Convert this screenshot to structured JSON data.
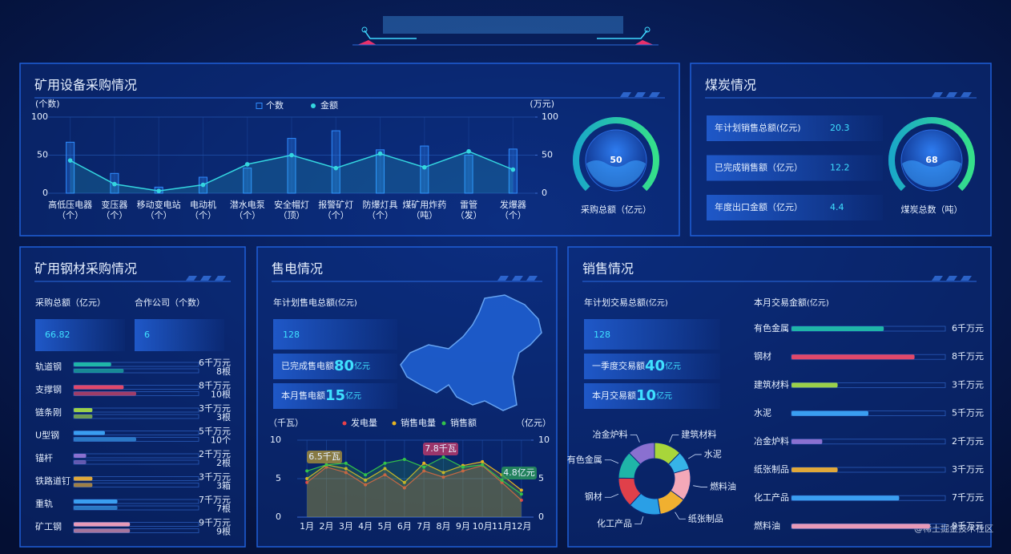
{
  "equipment": {
    "title": "矿用设备采购情况",
    "gauge": {
      "value": 50,
      "label": "采购总额（亿元）"
    }
  },
  "coal": {
    "title": "煤炭情况",
    "kpis": [
      {
        "label": "年计划销售总额(亿元)",
        "value": 20.3
      },
      {
        "label": "已完成销售额（亿元）",
        "value": 12.2
      },
      {
        "label": "年度出口金额（亿元）",
        "value": 4.4
      }
    ],
    "gauge": {
      "value": 68,
      "label": "煤炭总数（吨）"
    }
  },
  "steel": {
    "title": "矿用钢材采购情况",
    "kpis": [
      {
        "label": "采购总额（亿元）",
        "value": 66.82
      },
      {
        "label": "合作公司（个数）",
        "value": 6
      }
    ]
  },
  "power": {
    "title": "售电情况",
    "plan_label": "年计划售电总额",
    "plan_unit": "(亿元)",
    "plan_value": 128,
    "kpis": [
      {
        "label": "已完成售电额",
        "value": 80,
        "unit": "亿元"
      },
      {
        "label": "本月售电额",
        "value": 15,
        "unit": "亿元"
      }
    ]
  },
  "sales": {
    "title": "销售情况",
    "plan_label": "年计划交易总额",
    "plan_unit": "(亿元)",
    "plan_value": 128,
    "kpis": [
      {
        "label": "一季度交易额",
        "value": 40,
        "unit": "亿元"
      },
      {
        "label": "本月交易额",
        "value": 10,
        "unit": "亿元"
      }
    ],
    "bars_title": "本月交易金额",
    "bars_unit": "(亿元)"
  },
  "watermark": "@稀土掘金技术社区",
  "chart_data": [
    {
      "type": "combo",
      "categories": [
        "高低压电器",
        "变压器",
        "移动变电站",
        "电动机",
        "潜水电泵",
        "安全帽灯",
        "报警矿灯",
        "防爆灯具",
        "煤矿用炸药",
        "雷管",
        "发爆器"
      ],
      "category_units": [
        "（个）",
        "（个）",
        "（个）",
        "（个）",
        "（个）",
        "（顶）",
        "（个）",
        "（个）",
        "（吨）",
        "（发）",
        "（个）"
      ],
      "series": [
        {
          "name": "个数",
          "color": "#2f8cff",
          "values": [
            67,
            26,
            8,
            21,
            33,
            72,
            82,
            57,
            62,
            50,
            58
          ]
        },
        {
          "name": "金额",
          "color": "#34d6e0",
          "axis": "y2",
          "values": [
            43,
            12,
            3,
            11,
            38,
            50,
            33,
            52,
            34,
            55,
            31
          ]
        }
      ],
      "y_label": "(个数)",
      "y2_label": "(万元)",
      "ylim": [
        0,
        100
      ],
      "yticks": [
        0,
        50,
        100
      ],
      "y2lim": [
        0,
        100
      ],
      "y2ticks": [
        0,
        50,
        100
      ],
      "grid": true
    },
    {
      "type": "hbar",
      "categories": [
        "轨道钢",
        "支撑钢",
        "链条刚",
        "U型钢",
        "锚杆",
        "铁路道钉",
        "重轨",
        "矿工钢"
      ],
      "colors": [
        "#1fb5a8",
        "#e0486a",
        "#9bd04a",
        "#3a9ef0",
        "#8a70d0",
        "#e0a83a",
        "#3a9ef0",
        "#e89ab8"
      ],
      "series": [
        {
          "values": [
            6,
            8,
            3,
            5,
            2,
            3,
            7,
            9
          ],
          "value_labels": [
            "6千万元",
            "8千万元",
            "3千万元",
            "5千万元",
            "2千万元",
            "3千万元",
            "7千万元",
            "9千万元"
          ]
        },
        {
          "values": [
            8,
            10,
            3,
            10,
            2,
            3,
            7,
            9
          ],
          "value_labels": [
            "8根",
            "10根",
            "3根",
            "10个",
            "2根",
            "3箱",
            "7根",
            "9根"
          ]
        }
      ],
      "xlim": [
        0,
        20
      ]
    },
    {
      "type": "line",
      "categories": [
        "1月",
        "2月",
        "3月",
        "4月",
        "5月",
        "6月",
        "7月",
        "8月",
        "9月",
        "10月",
        "11月",
        "12月"
      ],
      "series": [
        {
          "name": "发电量",
          "color": "#e8404a",
          "values": [
            4.5,
            6.5,
            5.8,
            4.2,
            5.5,
            3.8,
            6,
            5.2,
            6,
            6.7,
            4.5,
            2.2
          ]
        },
        {
          "name": "销售电量",
          "color": "#e6b422",
          "values": [
            5,
            6.8,
            6.3,
            4.8,
            6.3,
            4.5,
            7,
            5.8,
            6.7,
            7.2,
            5.5,
            3.5
          ]
        },
        {
          "name": "销售额",
          "color": "#33c24a",
          "axis": "y2",
          "values": [
            6,
            6.8,
            7,
            5.5,
            7,
            7.5,
            6.5,
            7.8,
            6.5,
            6.8,
            4.8,
            3
          ]
        }
      ],
      "y_label": "（千瓦）",
      "y2_label": "（亿元）",
      "ylim": [
        0,
        10
      ],
      "yticks": [
        0,
        5,
        10
      ],
      "y2lim": [
        0,
        10
      ],
      "y2ticks": [
        0,
        5,
        10
      ],
      "annotations": [
        "6.5千瓦",
        "7.8千瓦",
        "4.8亿元"
      ]
    },
    {
      "type": "pie",
      "categories": [
        "建筑材料",
        "水泥",
        "燃料油",
        "纸张制品",
        "化工产品",
        "钢材",
        "有色金属",
        "冶金炉料"
      ],
      "colors": [
        "#a8d63a",
        "#36b4e8",
        "#f4a8b8",
        "#f0b030",
        "#2a9fe6",
        "#e0404a",
        "#1fb5a8",
        "#8a70d0"
      ],
      "values": [
        12,
        8,
        14,
        12,
        14,
        13,
        12,
        12
      ]
    },
    {
      "type": "hbar",
      "categories": [
        "有色金属",
        "钢材",
        "建筑材料",
        "水泥",
        "冶金炉料",
        "纸张制品",
        "化工产品",
        "燃料油"
      ],
      "colors": [
        "#1fb5a8",
        "#e0486a",
        "#9bd04a",
        "#3a9ef0",
        "#8a70d0",
        "#e0a83a",
        "#3a9ef0",
        "#e89ab8"
      ],
      "series": [
        {
          "values": [
            6,
            8,
            3,
            5,
            2,
            3,
            7,
            9
          ],
          "value_labels": [
            "6千万元",
            "8千万元",
            "3千万元",
            "5千万元",
            "2千万元",
            "3千万元",
            "7千万元",
            "9千万元"
          ]
        }
      ],
      "xlim": [
        0,
        10
      ]
    }
  ]
}
